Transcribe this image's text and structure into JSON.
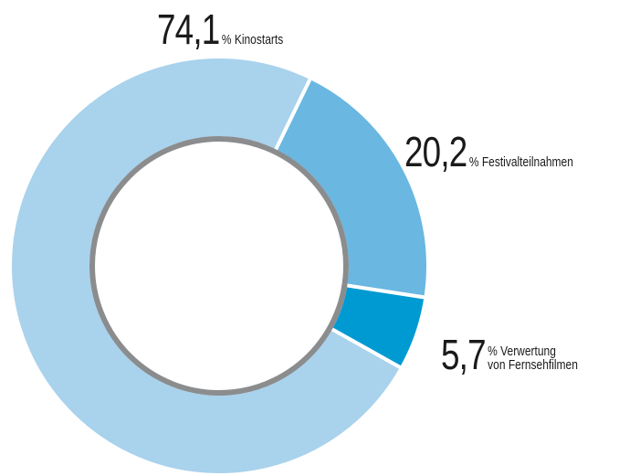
{
  "chart_data": {
    "type": "donut",
    "categories": [
      "Kinostarts",
      "Festivalteilnahmen",
      "Verwertung\nvon Fernsehfilmen"
    ],
    "values": [
      74.1,
      20.2,
      5.7
    ],
    "value_labels": [
      "74,1",
      "20,2",
      "5,7"
    ],
    "unit": "%",
    "colors": [
      "#a9d2ec",
      "#6ab7e2",
      "#009ad3"
    ]
  }
}
